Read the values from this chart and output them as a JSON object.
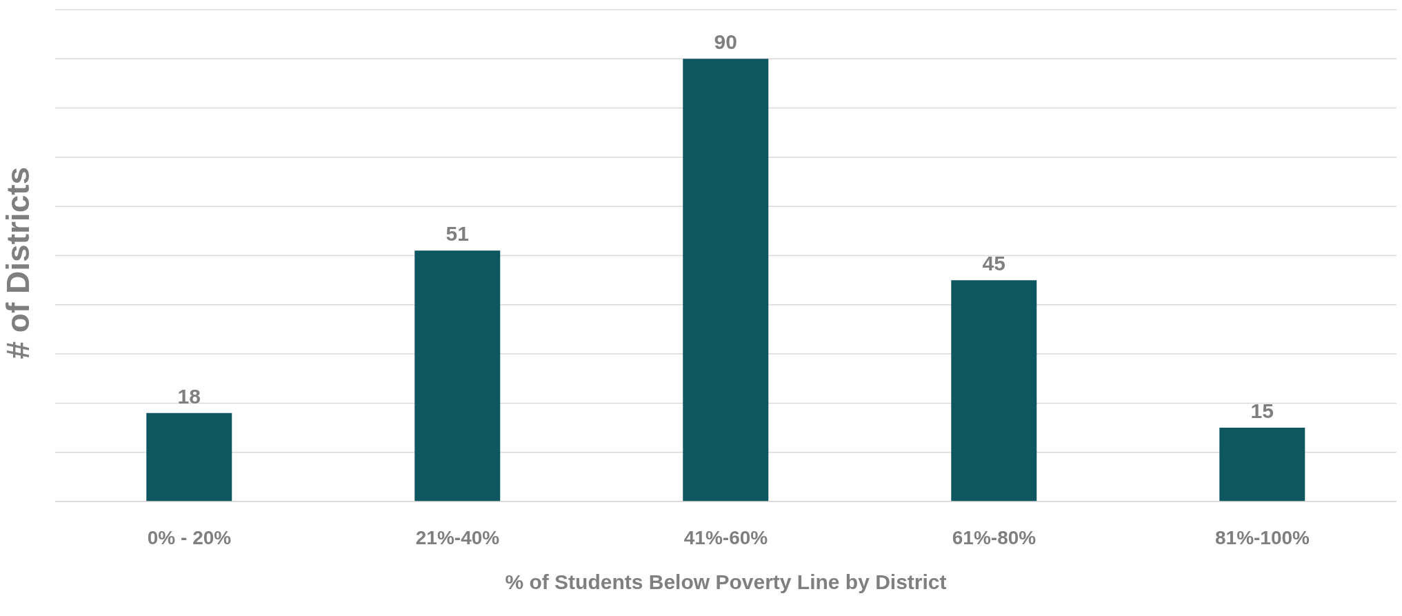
{
  "chart_data": {
    "type": "bar",
    "xlabel": "% of Students Below Poverty Line by District",
    "ylabel": "# of Districts",
    "categories": [
      "0% - 20%",
      "21%-40%",
      "41%-60%",
      "61%-80%",
      "81%-100%"
    ],
    "values": [
      18,
      51,
      90,
      45,
      15
    ],
    "color": "#0e5660",
    "ylim": [
      0,
      100
    ],
    "yticks": [
      {
        "value": 0,
        "label": null
      },
      {
        "value": 10,
        "label": null
      },
      {
        "value": 20,
        "label": null
      },
      {
        "value": 30,
        "label": null
      },
      {
        "value": 40,
        "label": null
      },
      {
        "value": 50,
        "label": null
      },
      {
        "value": 60,
        "label": null
      },
      {
        "value": 70,
        "label": null
      },
      {
        "value": 80,
        "label": null
      },
      {
        "value": 90,
        "label": null
      },
      {
        "value": 100,
        "label": null
      }
    ],
    "tick_labels": "x",
    "grid": "y",
    "data_labels": true
  }
}
